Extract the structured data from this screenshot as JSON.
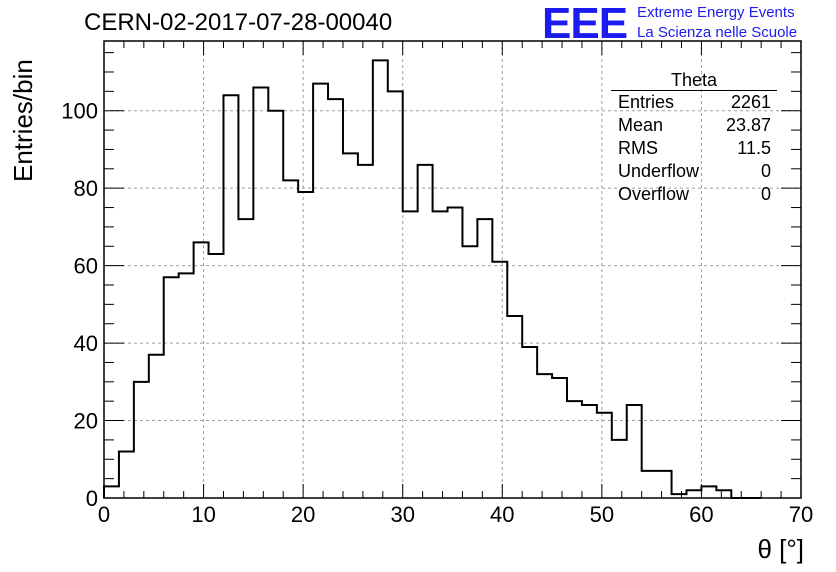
{
  "header": {
    "run_id": "CERN-02-2017-07-28-00040",
    "logo_mark": "EEE",
    "logo_line1": "Extreme Energy Events",
    "logo_line2": "La Scienza nelle Scuole"
  },
  "stats_box": {
    "title": "Theta",
    "rows": [
      {
        "label": "Entries",
        "value": "2261"
      },
      {
        "label": "Mean",
        "value": "23.87"
      },
      {
        "label": "RMS",
        "value": "11.5"
      },
      {
        "label": "Underflow",
        "value": "0"
      },
      {
        "label": "Overflow",
        "value": "0"
      }
    ]
  },
  "chart_data": {
    "type": "bar",
    "histogram": true,
    "xlabel": "θ [°]",
    "ylabel": "Entries/bin",
    "xlim": [
      0,
      70
    ],
    "ylim": [
      0,
      118
    ],
    "bin_width": 1.5,
    "bin_edges_start": 0,
    "values": [
      3,
      12,
      30,
      37,
      57,
      58,
      66,
      63,
      104,
      72,
      106,
      100,
      82,
      79,
      107,
      103,
      89,
      86,
      113,
      105,
      74,
      86,
      74,
      75,
      65,
      72,
      61,
      47,
      39,
      32,
      31,
      25,
      24,
      22,
      15,
      24,
      7,
      7,
      1,
      2,
      3,
      2,
      0,
      0
    ],
    "x_ticks": [
      0,
      10,
      20,
      30,
      40,
      50,
      60,
      70
    ],
    "y_ticks": [
      0,
      20,
      40,
      60,
      80,
      100
    ],
    "grid": true,
    "line_color": "#000000",
    "grid_color": "#a0a0a0"
  }
}
